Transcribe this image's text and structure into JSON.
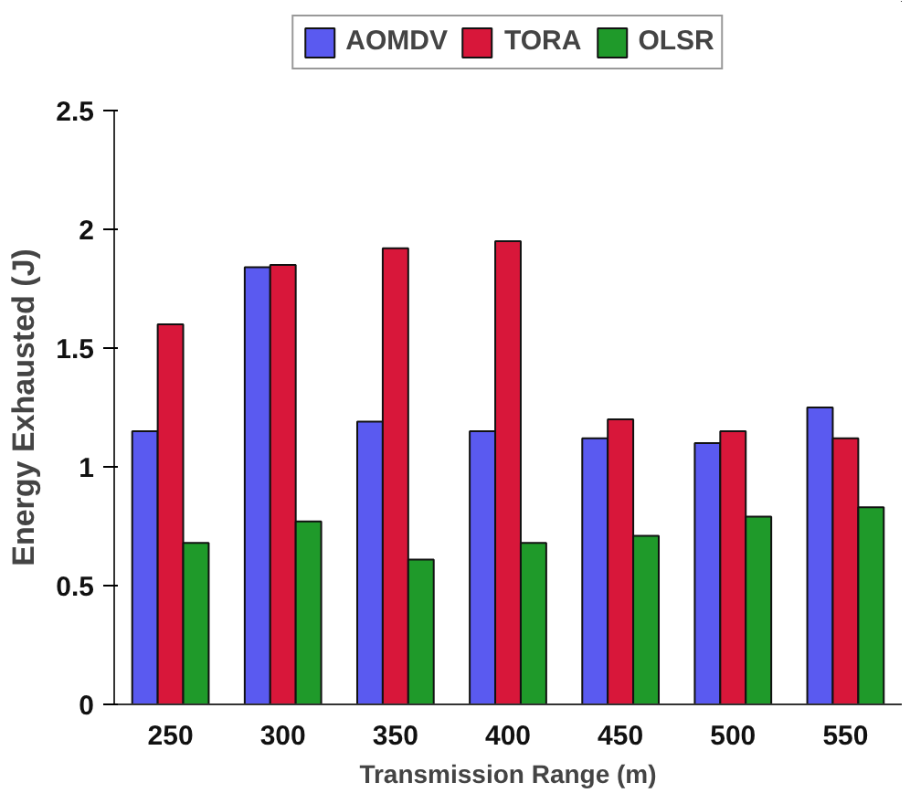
{
  "chart_data": {
    "type": "bar",
    "xlabel": "Transmission Range (m)",
    "ylabel": "Energy Exhausted (J)",
    "categories": [
      "250",
      "300",
      "350",
      "400",
      "450",
      "500",
      "550"
    ],
    "series": [
      {
        "name": "AOMDV",
        "color": "#5a5af0",
        "values": [
          1.15,
          1.84,
          1.19,
          1.15,
          1.12,
          1.1,
          1.25
        ]
      },
      {
        "name": "TORA",
        "color": "#d8173a",
        "values": [
          1.6,
          1.85,
          1.92,
          1.95,
          1.2,
          1.15,
          1.12
        ]
      },
      {
        "name": "OLSR",
        "color": "#1f9a2a",
        "values": [
          0.68,
          0.77,
          0.61,
          0.68,
          0.71,
          0.79,
          0.83
        ]
      }
    ],
    "ylim": [
      0,
      2.5
    ],
    "yticks": [
      0,
      0.5,
      1,
      1.5,
      2,
      2.5
    ],
    "grid": false,
    "legend": "top"
  }
}
